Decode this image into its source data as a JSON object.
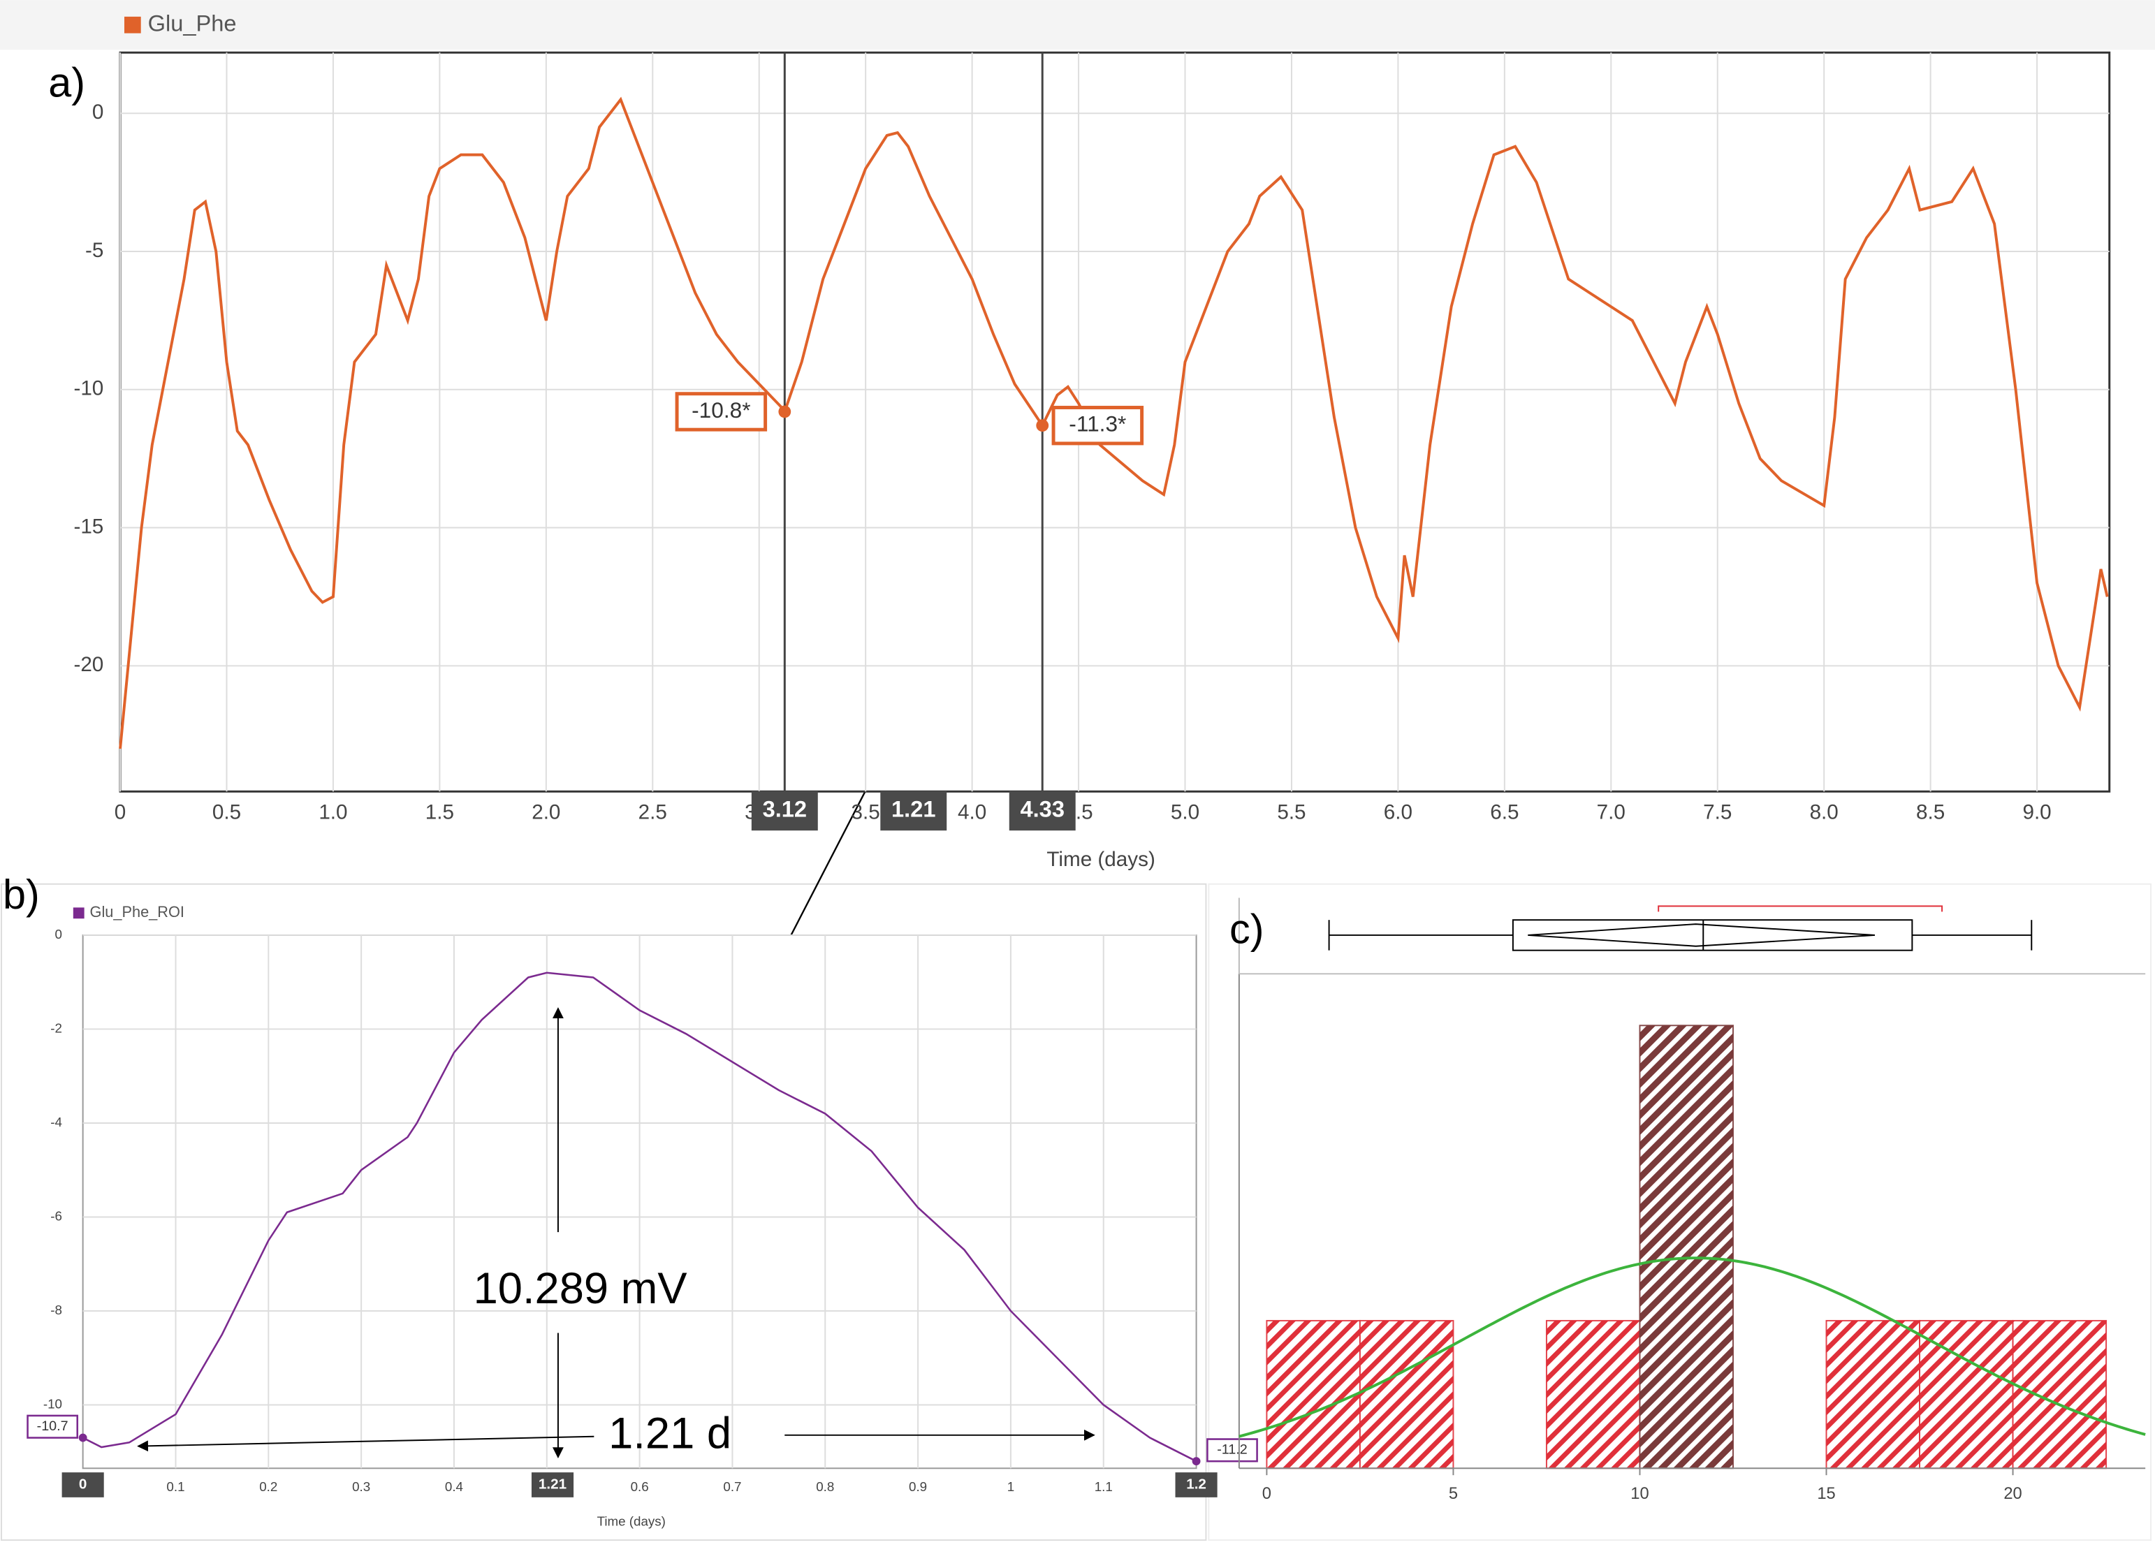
{
  "chart_data": [
    {
      "type": "line",
      "panel_label": "a)",
      "legend_label": "Glu_Phe",
      "xlabel": "Time (days)",
      "xlim": [
        0,
        9.34
      ],
      "ylim": [
        -24.55,
        2.2
      ],
      "xticks": [
        0,
        0.5,
        {
          "value": 1,
          "label": "1.0"
        },
        1.5,
        {
          "value": 2,
          "label": "2.0"
        },
        2.5,
        {
          "value": 3,
          "label": "3.0"
        },
        3.5,
        {
          "value": 4,
          "label": "4.0"
        },
        4.5,
        {
          "value": 5,
          "label": "5.0"
        },
        5.5,
        {
          "value": 6,
          "label": "6.0"
        },
        6.5,
        {
          "value": 7,
          "label": "7.0"
        },
        7.5,
        {
          "value": 8,
          "label": "8.0"
        },
        8.5,
        {
          "value": 9,
          "label": "9.0"
        }
      ],
      "yticks": [
        0,
        -5,
        -10,
        -15,
        -20
      ],
      "grid": true,
      "x": [
        0,
        0.05,
        0.1,
        0.15,
        0.2,
        0.25,
        0.3,
        0.35,
        0.4,
        0.45,
        0.5,
        0.55,
        0.6,
        0.7,
        0.8,
        0.9,
        0.95,
        1.0,
        1.05,
        1.1,
        1.2,
        1.25,
        1.3,
        1.35,
        1.4,
        1.45,
        1.5,
        1.6,
        1.7,
        1.8,
        1.9,
        2.0,
        2.05,
        2.1,
        2.2,
        2.25,
        2.35,
        2.4,
        2.5,
        2.6,
        2.7,
        2.8,
        2.9,
        3.0,
        3.1,
        3.12,
        3.2,
        3.3,
        3.4,
        3.5,
        3.6,
        3.65,
        3.7,
        3.8,
        3.9,
        4.0,
        4.1,
        4.2,
        4.33,
        4.4,
        4.45,
        4.5,
        4.6,
        4.8,
        4.9,
        4.95,
        5.0,
        5.1,
        5.2,
        5.3,
        5.35,
        5.45,
        5.55,
        5.6,
        5.7,
        5.8,
        5.9,
        6.0,
        6.03,
        6.07,
        6.15,
        6.25,
        6.35,
        6.45,
        6.55,
        6.65,
        6.8,
        6.9,
        7.0,
        7.1,
        7.2,
        7.3,
        7.35,
        7.45,
        7.5,
        7.6,
        7.7,
        7.8,
        8.0,
        8.05,
        8.1,
        8.2,
        8.3,
        8.4,
        8.45,
        8.6,
        8.7,
        8.8,
        8.9,
        9.0,
        9.1,
        9.2,
        9.25,
        9.3,
        9.33
      ],
      "series": [
        {
          "name": "Glu_Phe",
          "color": "#e0622a",
          "values": [
            -23,
            -19,
            -15,
            -12,
            -10,
            -8,
            -6,
            -3.5,
            -3.2,
            -5,
            -9,
            -11.5,
            -12,
            -14,
            -15.8,
            -17.3,
            -17.7,
            -17.5,
            -12,
            -9,
            -8,
            -5.5,
            -6.5,
            -7.5,
            -6,
            -3,
            -2,
            -1.5,
            -1.5,
            -2.5,
            -4.5,
            -7.5,
            -5,
            -3,
            -2,
            -0.5,
            0.5,
            -0.5,
            -2.5,
            -4.5,
            -6.5,
            -8,
            -9,
            -9.8,
            -10.6,
            -10.8,
            -9,
            -6,
            -4,
            -2,
            -0.8,
            -0.7,
            -1.2,
            -3,
            -4.5,
            -6,
            -8,
            -9.8,
            -11.3,
            -10.2,
            -9.9,
            -10.5,
            -12,
            -13.3,
            -13.8,
            -12,
            -9,
            -7,
            -5,
            -4,
            -3,
            -2.3,
            -3.5,
            -6,
            -11,
            -15,
            -17.5,
            -19,
            -16,
            -17.5,
            -12,
            -7,
            -4,
            -1.5,
            -1.2,
            -2.5,
            -6,
            -6.5,
            -7,
            -7.5,
            -9,
            -10.5,
            -9,
            -7,
            -8,
            -10.5,
            -12.5,
            -13.3,
            -14.2,
            -11,
            -6,
            -4.5,
            -3.5,
            -2,
            -3.5,
            -3.2,
            -2,
            -4,
            -10,
            -17,
            -20,
            -21.5,
            -19,
            -16.5,
            -17.5
          ]
        }
      ],
      "cursors": [
        {
          "x": 3.12,
          "value": -10.8,
          "value_label": "-10.8*"
        },
        {
          "x": 4.33,
          "value": -11.3,
          "value_label": "-11.3*"
        }
      ],
      "cursor_delta": 1.21
    },
    {
      "type": "line",
      "panel_label": "b)",
      "legend_label": "Glu_Phe_ROI",
      "xlabel": "Time (days)",
      "xlim": [
        0,
        1.2
      ],
      "ylim": [
        -11.35,
        0
      ],
      "xticks": [
        0.1,
        0.2,
        0.3,
        0.4,
        0.5,
        0.6,
        0.7,
        0.8,
        0.9,
        1.0,
        1.1
      ],
      "yticks": [
        0,
        -2,
        -4,
        -6,
        -8,
        -10
      ],
      "grid": true,
      "x": [
        0,
        0.02,
        0.05,
        0.1,
        0.15,
        0.2,
        0.22,
        0.28,
        0.3,
        0.35,
        0.36,
        0.4,
        0.43,
        0.48,
        0.5,
        0.55,
        0.6,
        0.65,
        0.7,
        0.75,
        0.8,
        0.85,
        0.9,
        0.95,
        1.0,
        1.05,
        1.1,
        1.15,
        1.2
      ],
      "series": [
        {
          "name": "Glu_Phe_ROI",
          "color": "#7b2a8f",
          "values": [
            -10.7,
            -10.9,
            -10.8,
            -10.2,
            -8.5,
            -6.5,
            -5.9,
            -5.5,
            -5,
            -4.3,
            -4,
            -2.5,
            -1.8,
            -0.9,
            -0.8,
            -0.9,
            -1.6,
            -2.1,
            -2.7,
            -3.3,
            -3.8,
            -4.6,
            -5.8,
            -6.7,
            -8,
            -9,
            -10,
            -10.7,
            -11.2
          ]
        }
      ],
      "cursors": [
        {
          "x": 0,
          "value": -10.7
        },
        {
          "x": 1.2,
          "value": -11.2
        }
      ],
      "cursor_delta": 1.21,
      "annotations": [
        "10.289 mV",
        "1.21 d"
      ]
    },
    {
      "type": "histogram",
      "panel_label": "c)",
      "bins": [
        0,
        2.5,
        5,
        7.5,
        10,
        12.5,
        15,
        17.5,
        20,
        22.5
      ],
      "values": [
        1,
        1,
        0,
        1,
        3,
        0,
        1,
        1,
        1
      ],
      "xlim": [
        -0.74,
        23.55
      ],
      "ylim": [
        0,
        3.35
      ],
      "xticks": [
        0,
        5,
        10,
        15,
        20
      ],
      "color": "#e0303a",
      "highlight_color": "#7a3a3a",
      "highlight_index": 4,
      "normal": {
        "mean": 11.5,
        "sd": 6.3,
        "color": "#3cb43c"
      },
      "box": {
        "whisker_low": 1.67,
        "q1": 6.6,
        "median": 11.7,
        "q3": 17.3,
        "whisker_high": 20.5,
        "mean_ci": [
          7.0,
          16.3
        ],
        "shortest_half": [
          10.5,
          18.1
        ]
      }
    }
  ]
}
